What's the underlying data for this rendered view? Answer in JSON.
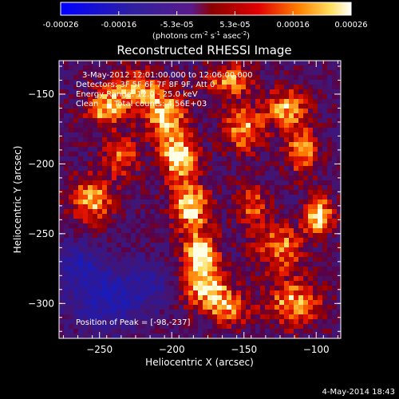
{
  "colorbar": {
    "ticks": [
      "-0.00026",
      "-0.00016",
      "-5.3e-05",
      "5.3e-05",
      "0.00016",
      "0.00026"
    ],
    "units_main": "(photons cm",
    "units_exp1": "-2",
    "units_mid": " s",
    "units_exp2": "-1",
    "units_end": " asec",
    "units_exp3": "-2",
    "units_close": ")"
  },
  "chart_data": {
    "type": "heatmap",
    "title": "Reconstructed RHESSI Image",
    "xlabel": "Heliocentric X (arcsec)",
    "ylabel": "Heliocentric Y (arcsec)",
    "xlim": [
      -278,
      -83
    ],
    "ylim": [
      -325,
      -126
    ],
    "x_ticks": [
      -250,
      -200,
      -150,
      -100
    ],
    "y_ticks": [
      -300,
      -250,
      -200,
      -150
    ],
    "value_range": [
      -0.00026,
      0.00026
    ],
    "colormap": "red-temperature (blue negative → purple → red → orange → white)",
    "peak": [
      -98,
      -237
    ],
    "blobs": [
      {
        "x": -98,
        "y": -237,
        "sx": 7,
        "sy": 9,
        "a": 1.0
      },
      {
        "x": -180,
        "y": -265,
        "sx": 9,
        "sy": 12,
        "a": 0.95
      },
      {
        "x": -187,
        "y": -230,
        "sx": 9,
        "sy": 12,
        "a": 0.9
      },
      {
        "x": -195,
        "y": -195,
        "sx": 9,
        "sy": 12,
        "a": 0.95
      },
      {
        "x": -205,
        "y": -165,
        "sx": 10,
        "sy": 12,
        "a": 0.9
      },
      {
        "x": -225,
        "y": -145,
        "sx": 11,
        "sy": 9,
        "a": 0.7
      },
      {
        "x": -175,
        "y": -290,
        "sx": 12,
        "sy": 10,
        "a": 0.8
      },
      {
        "x": -255,
        "y": -225,
        "sx": 10,
        "sy": 12,
        "a": 0.8
      },
      {
        "x": -245,
        "y": -160,
        "sx": 10,
        "sy": 10,
        "a": 0.8
      },
      {
        "x": -150,
        "y": -175,
        "sx": 10,
        "sy": 12,
        "a": 0.75
      },
      {
        "x": -160,
        "y": -140,
        "sx": 12,
        "sy": 8,
        "a": 0.7
      },
      {
        "x": -120,
        "y": -160,
        "sx": 10,
        "sy": 10,
        "a": 0.75
      },
      {
        "x": -110,
        "y": -190,
        "sx": 8,
        "sy": 12,
        "a": 0.75
      },
      {
        "x": -125,
        "y": -260,
        "sx": 12,
        "sy": 12,
        "a": 0.7
      },
      {
        "x": -145,
        "y": -230,
        "sx": 8,
        "sy": 10,
        "a": 0.6
      },
      {
        "x": -115,
        "y": -300,
        "sx": 14,
        "sy": 12,
        "a": 0.75
      },
      {
        "x": -160,
        "y": -305,
        "sx": 10,
        "sy": 8,
        "a": 0.6
      },
      {
        "x": -235,
        "y": -195,
        "sx": 9,
        "sy": 10,
        "a": 0.6
      }
    ],
    "negative_blobs": [
      {
        "x": -245,
        "y": -295,
        "sx": 18,
        "sy": 16,
        "a": 0.7
      },
      {
        "x": -265,
        "y": -270,
        "sx": 10,
        "sy": 10,
        "a": 0.5
      },
      {
        "x": -215,
        "y": -285,
        "sx": 10,
        "sy": 10,
        "a": 0.4
      }
    ]
  },
  "annotations": {
    "time": "3-May-2012 12:01:00.000 to 12:06:00.000",
    "detectors": "Detectors: 3F 5F 6F 7F 8F 9F, Att 0",
    "energy": "Energy Range: 12.0 - 25.0 keV",
    "method": "Clean",
    "counts": "Total counts: 4.56E+03",
    "peak": "Position of Peak = [-98,-237]"
  },
  "timestamp": "4-May-2014 18:43"
}
